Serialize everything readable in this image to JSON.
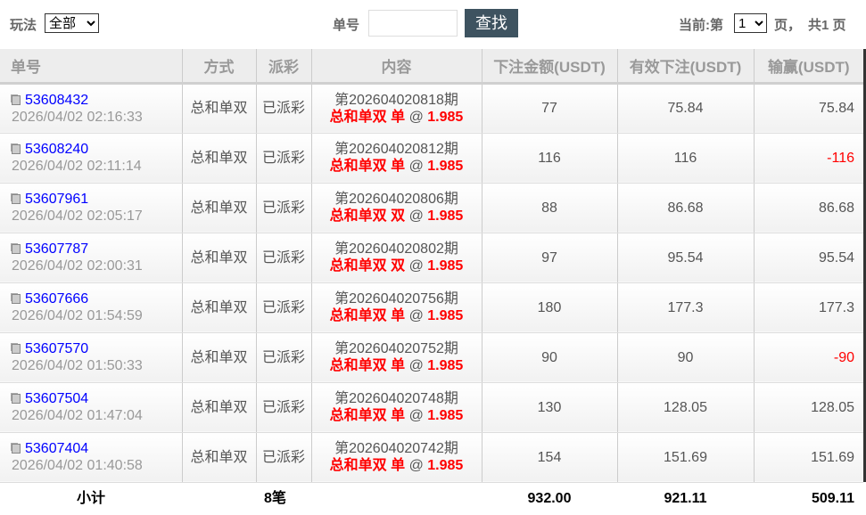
{
  "filter": {
    "label": "玩法",
    "value": "全部",
    "order_label": "单号",
    "order_value": "",
    "search_label": "查找"
  },
  "pager": {
    "prefix": "当前:第",
    "page": "1",
    "suffix": "页，",
    "total": "共1 页"
  },
  "columns": [
    "单号",
    "方式",
    "派彩",
    "内容",
    "下注金额(USDT)",
    "有效下注(USDT)",
    "输赢(USDT)"
  ],
  "colors": {
    "accent": "#3e5360",
    "link": "#0000ff",
    "loss": "#ff0000"
  },
  "rows": [
    {
      "id": "53608432",
      "time": "2026/04/02 02:16:33",
      "mode": "总和单双",
      "status": "已派彩",
      "period": "第202604020818期",
      "bet": "总和单双 单",
      "odds": "1.985",
      "amount": "77",
      "valid": "75.84",
      "win": "75.84"
    },
    {
      "id": "53608240",
      "time": "2026/04/02 02:11:14",
      "mode": "总和单双",
      "status": "已派彩",
      "period": "第202604020812期",
      "bet": "总和单双 单",
      "odds": "1.985",
      "amount": "116",
      "valid": "116",
      "win": "-116"
    },
    {
      "id": "53607961",
      "time": "2026/04/02 02:05:17",
      "mode": "总和单双",
      "status": "已派彩",
      "period": "第202604020806期",
      "bet": "总和单双 双",
      "odds": "1.985",
      "amount": "88",
      "valid": "86.68",
      "win": "86.68"
    },
    {
      "id": "53607787",
      "time": "2026/04/02 02:00:31",
      "mode": "总和单双",
      "status": "已派彩",
      "period": "第202604020802期",
      "bet": "总和单双 双",
      "odds": "1.985",
      "amount": "97",
      "valid": "95.54",
      "win": "95.54"
    },
    {
      "id": "53607666",
      "time": "2026/04/02 01:54:59",
      "mode": "总和单双",
      "status": "已派彩",
      "period": "第202604020756期",
      "bet": "总和单双 单",
      "odds": "1.985",
      "amount": "180",
      "valid": "177.3",
      "win": "177.3"
    },
    {
      "id": "53607570",
      "time": "2026/04/02 01:50:33",
      "mode": "总和单双",
      "status": "已派彩",
      "period": "第202604020752期",
      "bet": "总和单双 单",
      "odds": "1.985",
      "amount": "90",
      "valid": "90",
      "win": "-90"
    },
    {
      "id": "53607504",
      "time": "2026/04/02 01:47:04",
      "mode": "总和单双",
      "status": "已派彩",
      "period": "第202604020748期",
      "bet": "总和单双 单",
      "odds": "1.985",
      "amount": "130",
      "valid": "128.05",
      "win": "128.05"
    },
    {
      "id": "53607404",
      "time": "2026/04/02 01:40:58",
      "mode": "总和单双",
      "status": "已派彩",
      "period": "第202604020742期",
      "bet": "总和单双 单",
      "odds": "1.985",
      "amount": "154",
      "valid": "151.69",
      "win": "151.69"
    }
  ],
  "footer": {
    "label": "小计",
    "count": "8笔",
    "amount": "932.00",
    "valid": "921.11",
    "win": "509.11"
  }
}
